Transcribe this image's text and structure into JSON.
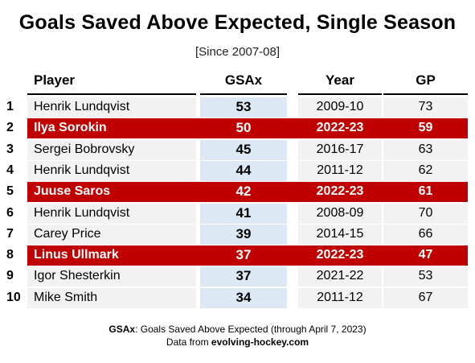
{
  "chart_data": {
    "type": "table",
    "title": "Goals Saved Above Expected, Single Season",
    "subtitle": "[Since 2007-08]",
    "columns": [
      "Player",
      "GSAx",
      "Year",
      "GP"
    ],
    "rows": [
      {
        "rank": "1",
        "player": "Henrik Lundqvist",
        "gsax": 53,
        "year": "2009-10",
        "gp": 73,
        "highlight": false
      },
      {
        "rank": "2",
        "player": "Ilya Sorokin",
        "gsax": 50,
        "year": "2022-23",
        "gp": 59,
        "highlight": true
      },
      {
        "rank": "3",
        "player": "Sergei Bobrovsky",
        "gsax": 45,
        "year": "2016-17",
        "gp": 63,
        "highlight": false
      },
      {
        "rank": "4",
        "player": "Henrik Lundqvist",
        "gsax": 44,
        "year": "2011-12",
        "gp": 62,
        "highlight": false
      },
      {
        "rank": "5",
        "player": "Juuse Saros",
        "gsax": 42,
        "year": "2022-23",
        "gp": 61,
        "highlight": true
      },
      {
        "rank": "6",
        "player": "Henrik Lundqvist",
        "gsax": 41,
        "year": "2008-09",
        "gp": 70,
        "highlight": false
      },
      {
        "rank": "7",
        "player": "Carey Price",
        "gsax": 39,
        "year": "2014-15",
        "gp": 66,
        "highlight": false
      },
      {
        "rank": "8",
        "player": "Linus Ullmark",
        "gsax": 37,
        "year": "2022-23",
        "gp": 47,
        "highlight": true
      },
      {
        "rank": "9",
        "player": "Igor Shesterkin",
        "gsax": 37,
        "year": "2021-22",
        "gp": 53,
        "highlight": false
      },
      {
        "rank": "10",
        "player": "Mike Smith",
        "gsax": 34,
        "year": "2011-12",
        "gp": 67,
        "highlight": false
      }
    ],
    "footer": {
      "gsax_term": "GSAx",
      "gsax_definition": ": Goals Saved Above Expected (through April 7, 2023)",
      "source_prefix": "Data from ",
      "source_site": "evolving-hockey.com"
    },
    "colors": {
      "highlight": "#c00000",
      "gsax_column": "#dce9f5",
      "stripe": "#f2f2f2"
    }
  }
}
